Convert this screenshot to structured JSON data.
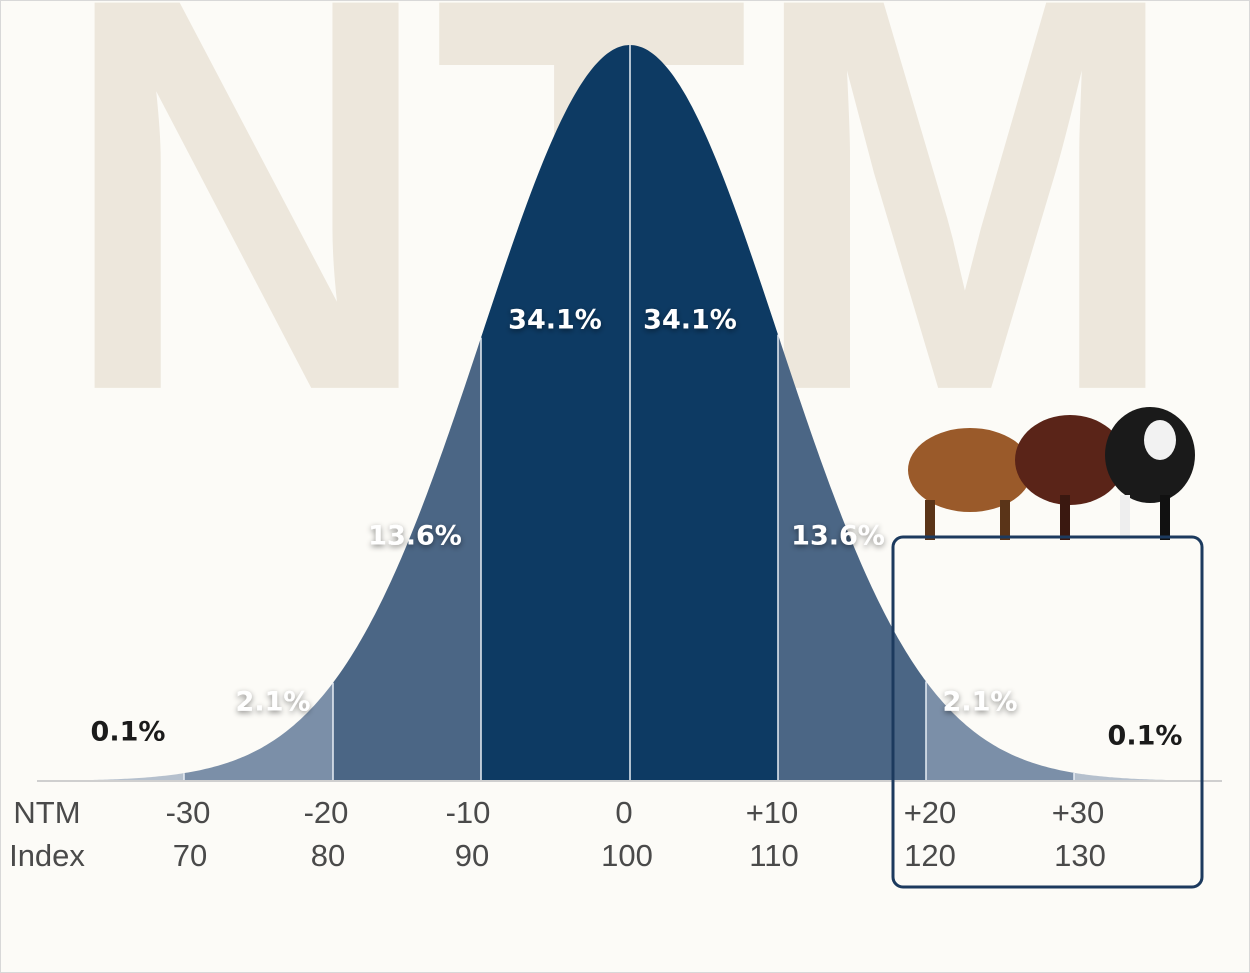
{
  "watermark": "NTM",
  "segments": [
    "0.1%",
    "2.1%",
    "13.6%",
    "34.1%",
    "34.1%",
    "13.6%",
    "2.1%",
    "0.1%"
  ],
  "rows": [
    {
      "name": "NTM",
      "labels": [
        "-30",
        "-20",
        "-10",
        "0",
        "+10",
        "+20",
        "+30"
      ]
    },
    {
      "name": "Index",
      "labels": [
        "70",
        "80",
        "90",
        "100",
        "110",
        "120",
        "130"
      ]
    }
  ]
}
